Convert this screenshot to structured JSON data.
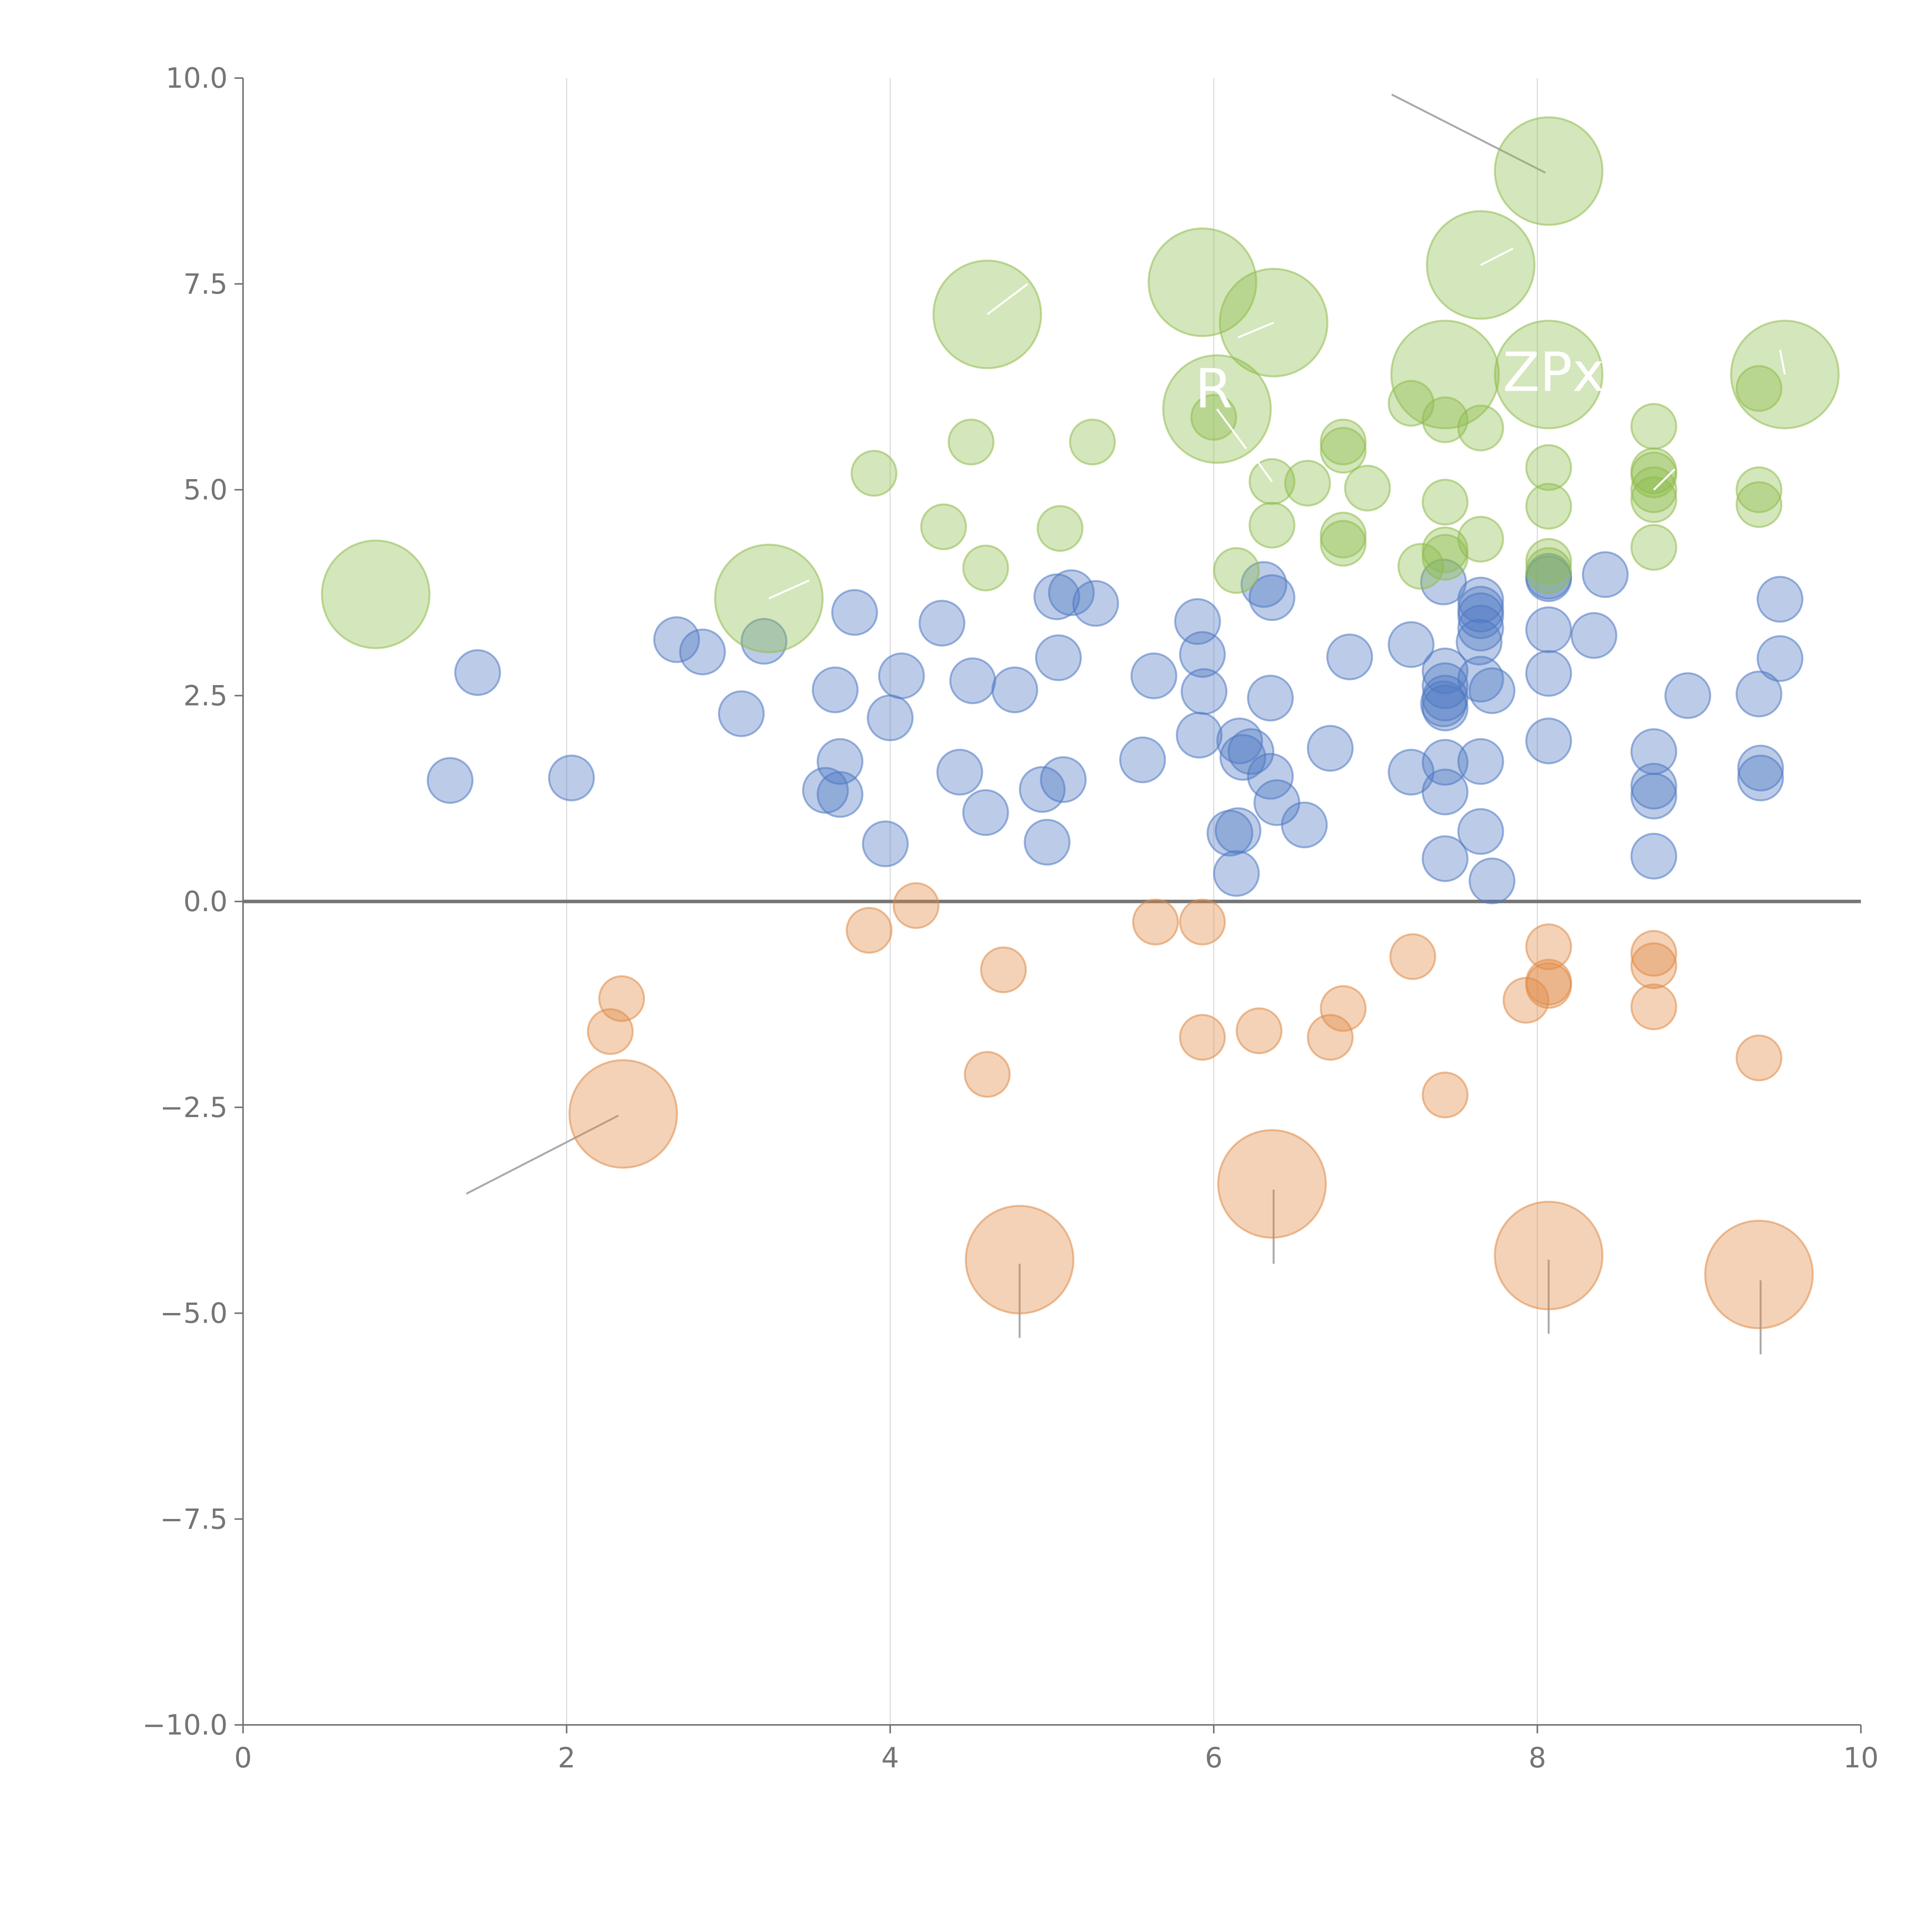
{
  "chart_data": {
    "type": "scatter",
    "title": "",
    "xlabel": "",
    "ylabel": "",
    "xlim": [
      0,
      10
    ],
    "ylim": [
      -10,
      10
    ],
    "x_ticks": [
      0,
      2,
      4,
      6,
      8,
      10
    ],
    "x_tick_labels": [
      "0",
      "2",
      "4",
      "6",
      "8",
      "10"
    ],
    "y_ticks": [
      -10,
      -7.5,
      -5,
      -2.5,
      0,
      2.5,
      5,
      7.5,
      10
    ],
    "y_tick_labels": [
      "−10.0",
      "−7.5",
      "−5.0",
      "−2.5",
      "0.0",
      "2.5",
      "5.0",
      "7.5",
      "10.0"
    ],
    "grid": "vertical",
    "colors": {
      "blue": "#4e79c3",
      "green": "#8fbc4c",
      "orange": "#e08a45",
      "axis": "#757575",
      "grid": "#dddddd",
      "zero_line": "#757575",
      "leader": "#aaaaaa"
    },
    "point_alpha": 0.38,
    "size_scale": {
      "small": 1,
      "large": 2.4
    },
    "series": [
      {
        "name": "blue",
        "color_key": "blue",
        "points": [
          [
            1.28,
            1.47,
            1
          ],
          [
            1.45,
            2.78,
            1
          ],
          [
            2.03,
            1.5,
            1
          ],
          [
            2.68,
            3.18,
            1
          ],
          [
            2.84,
            3.03,
            1
          ],
          [
            3.08,
            2.28,
            1
          ],
          [
            3.22,
            3.16,
            1
          ],
          [
            3.6,
            1.35,
            1
          ],
          [
            3.66,
            2.57,
            1
          ],
          [
            3.69,
            1.7,
            1
          ],
          [
            3.69,
            1.3,
            1
          ],
          [
            3.78,
            3.51,
            1
          ],
          [
            3.97,
            0.7,
            1
          ],
          [
            4.0,
            2.23,
            1
          ],
          [
            4.07,
            2.74,
            1
          ],
          [
            4.32,
            3.38,
            1
          ],
          [
            4.43,
            1.57,
            1
          ],
          [
            4.51,
            2.68,
            1
          ],
          [
            4.59,
            1.08,
            1
          ],
          [
            4.77,
            2.57,
            1
          ],
          [
            4.97,
            0.72,
            1
          ],
          [
            4.94,
            1.36,
            1
          ],
          [
            5.03,
            3.7,
            1
          ],
          [
            5.04,
            2.96,
            1
          ],
          [
            5.07,
            1.48,
            1
          ],
          [
            5.12,
            3.75,
            1
          ],
          [
            5.27,
            3.62,
            1
          ],
          [
            5.56,
            1.72,
            1
          ],
          [
            5.63,
            2.74,
            1
          ],
          [
            5.9,
            3.4,
            1
          ],
          [
            5.91,
            2.02,
            1
          ],
          [
            5.93,
            3.0,
            1
          ],
          [
            5.94,
            2.55,
            1
          ],
          [
            6.1,
            0.83,
            1
          ],
          [
            6.15,
            0.86,
            1
          ],
          [
            6.14,
            0.34,
            1
          ],
          [
            6.16,
            1.95,
            1
          ],
          [
            6.18,
            1.75,
            1
          ],
          [
            6.23,
            1.82,
            1
          ],
          [
            6.31,
            3.85,
            1
          ],
          [
            6.36,
            3.69,
            1
          ],
          [
            6.35,
            2.47,
            1
          ],
          [
            6.35,
            1.52,
            1
          ],
          [
            6.39,
            1.2,
            1
          ],
          [
            6.56,
            0.93,
            1
          ],
          [
            6.72,
            1.86,
            1
          ],
          [
            6.84,
            2.97,
            1
          ],
          [
            7.22,
            3.12,
            1
          ],
          [
            7.22,
            1.57,
            1
          ],
          [
            7.42,
            3.88,
            1
          ],
          [
            7.43,
            2.8,
            1
          ],
          [
            7.43,
            2.62,
            1
          ],
          [
            7.43,
            2.47,
            1
          ],
          [
            7.42,
            2.4,
            1
          ],
          [
            7.43,
            2.35,
            1
          ],
          [
            7.43,
            1.69,
            1
          ],
          [
            7.43,
            1.33,
            1
          ],
          [
            7.43,
            0.52,
            1
          ],
          [
            7.65,
            3.66,
            1
          ],
          [
            7.65,
            3.55,
            1
          ],
          [
            7.65,
            3.47,
            1
          ],
          [
            7.65,
            3.32,
            1
          ],
          [
            7.64,
            3.15,
            1
          ],
          [
            7.65,
            2.7,
            1
          ],
          [
            7.65,
            1.7,
            1
          ],
          [
            7.65,
            0.85,
            1
          ],
          [
            7.72,
            2.56,
            1
          ],
          [
            7.72,
            0.25,
            1
          ],
          [
            8.07,
            3.95,
            1
          ],
          [
            8.07,
            3.92,
            1
          ],
          [
            8.07,
            3.3,
            1
          ],
          [
            8.07,
            2.77,
            1
          ],
          [
            8.07,
            1.95,
            1
          ],
          [
            8.35,
            3.23,
            1
          ],
          [
            8.42,
            3.97,
            1
          ],
          [
            8.72,
            1.82,
            1
          ],
          [
            8.72,
            1.4,
            1
          ],
          [
            8.72,
            1.28,
            1
          ],
          [
            8.72,
            0.55,
            1
          ],
          [
            8.93,
            2.5,
            1
          ],
          [
            9.37,
            2.52,
            1
          ],
          [
            9.38,
            1.62,
            1
          ],
          [
            9.38,
            1.5,
            1
          ],
          [
            9.5,
            3.67,
            1
          ],
          [
            9.5,
            2.95,
            1
          ]
        ]
      },
      {
        "name": "green",
        "color_key": "green",
        "points": [
          [
            0.82,
            3.73,
            2.4
          ],
          [
            3.25,
            3.68,
            2.4
          ],
          [
            4.6,
            7.13,
            2.4
          ],
          [
            5.93,
            7.52,
            2.4
          ],
          [
            6.02,
            5.98,
            2.4
          ],
          [
            6.37,
            7.03,
            2.4
          ],
          [
            7.65,
            7.73,
            2.4
          ],
          [
            7.43,
            6.4,
            2.4
          ],
          [
            8.07,
            8.87,
            2.4
          ],
          [
            8.07,
            6.4,
            2.4
          ],
          [
            9.53,
            6.4,
            2.4
          ],
          [
            3.9,
            5.2,
            1
          ],
          [
            4.33,
            4.55,
            1
          ],
          [
            4.5,
            5.58,
            1
          ],
          [
            4.59,
            4.05,
            1
          ],
          [
            5.05,
            4.53,
            1
          ],
          [
            5.25,
            5.58,
            1
          ],
          [
            6.0,
            5.88,
            1
          ],
          [
            6.14,
            4.02,
            1
          ],
          [
            6.36,
            5.1,
            1
          ],
          [
            6.36,
            4.57,
            1
          ],
          [
            6.58,
            5.08,
            1
          ],
          [
            6.8,
            5.58,
            1
          ],
          [
            6.8,
            5.48,
            1
          ],
          [
            6.8,
            4.45,
            1
          ],
          [
            6.8,
            4.35,
            1
          ],
          [
            6.95,
            5.02,
            1
          ],
          [
            7.22,
            6.05,
            1
          ],
          [
            7.28,
            4.07,
            1
          ],
          [
            7.43,
            5.85,
            1
          ],
          [
            7.43,
            4.85,
            1
          ],
          [
            7.43,
            4.27,
            1
          ],
          [
            7.43,
            4.18,
            1
          ],
          [
            7.65,
            5.75,
            1
          ],
          [
            7.65,
            4.4,
            1
          ],
          [
            8.07,
            5.27,
            1
          ],
          [
            8.07,
            4.8,
            1
          ],
          [
            8.07,
            4.13,
            1
          ],
          [
            8.07,
            4.02,
            1
          ],
          [
            8.72,
            5.77,
            1
          ],
          [
            8.72,
            5.23,
            1
          ],
          [
            8.72,
            5.18,
            1
          ],
          [
            8.72,
            5.0,
            1
          ],
          [
            8.72,
            4.88,
            1
          ],
          [
            8.72,
            4.3,
            1
          ],
          [
            9.37,
            6.23,
            1
          ],
          [
            9.37,
            5.0,
            1
          ],
          [
            9.37,
            4.82,
            1
          ]
        ]
      },
      {
        "name": "orange",
        "color_key": "orange",
        "points": [
          [
            2.35,
            -2.58,
            2.4
          ],
          [
            4.8,
            -4.35,
            2.4
          ],
          [
            6.36,
            -3.43,
            2.4
          ],
          [
            8.07,
            -4.3,
            2.4
          ],
          [
            9.37,
            -4.53,
            2.4
          ],
          [
            2.27,
            -1.58,
            1
          ],
          [
            2.34,
            -1.18,
            1
          ],
          [
            3.87,
            -0.35,
            1
          ],
          [
            4.16,
            -0.05,
            1
          ],
          [
            4.6,
            -2.1,
            1
          ],
          [
            4.7,
            -0.83,
            1
          ],
          [
            5.64,
            -0.25,
            1
          ],
          [
            5.93,
            -0.25,
            1
          ],
          [
            5.93,
            -1.65,
            1
          ],
          [
            6.28,
            -1.57,
            1
          ],
          [
            6.72,
            -1.65,
            1
          ],
          [
            6.8,
            -1.3,
            1
          ],
          [
            7.23,
            -0.67,
            1
          ],
          [
            7.43,
            -2.35,
            1
          ],
          [
            7.93,
            -1.2,
            1
          ],
          [
            8.07,
            -0.55,
            1
          ],
          [
            8.07,
            -0.98,
            1
          ],
          [
            8.07,
            -1.02,
            1
          ],
          [
            8.72,
            -0.63,
            1
          ],
          [
            8.72,
            -0.78,
            1
          ],
          [
            8.72,
            -1.28,
            1
          ],
          [
            9.37,
            -1.9,
            1
          ]
        ]
      }
    ],
    "annotations": [
      {
        "text": "R",
        "x": 6.0,
        "y": 6.0
      },
      {
        "text": "ZPx",
        "x": 8.1,
        "y": 6.2
      }
    ],
    "leader_lines": [
      {
        "from": [
          8.05,
          8.85
        ],
        "to": [
          7.1,
          9.8
        ],
        "color_key": "leader"
      },
      {
        "from": [
          2.32,
          -2.6
        ],
        "to": [
          1.38,
          -3.55
        ],
        "color_key": "leader"
      },
      {
        "from": [
          4.8,
          -4.4
        ],
        "to": [
          4.8,
          -5.3
        ],
        "color_key": "leader"
      },
      {
        "from": [
          6.37,
          -3.5
        ],
        "to": [
          6.37,
          -4.4
        ],
        "color_key": "leader"
      },
      {
        "from": [
          8.07,
          -4.35
        ],
        "to": [
          8.07,
          -5.25
        ],
        "color_key": "leader"
      },
      {
        "from": [
          9.38,
          -4.6
        ],
        "to": [
          9.38,
          -5.5
        ],
        "color_key": "leader"
      },
      {
        "from": [
          4.6,
          7.13
        ],
        "to": [
          4.85,
          7.5
        ],
        "color_key": "white"
      },
      {
        "from": [
          3.25,
          3.68
        ],
        "to": [
          3.5,
          3.9
        ],
        "color_key": "white"
      },
      {
        "from": [
          6.37,
          7.03
        ],
        "to": [
          6.15,
          6.85
        ],
        "color_key": "white"
      },
      {
        "from": [
          7.65,
          7.73
        ],
        "to": [
          7.85,
          7.93
        ],
        "color_key": "white"
      },
      {
        "from": [
          9.53,
          6.4
        ],
        "to": [
          9.5,
          6.7
        ],
        "color_key": "white"
      },
      {
        "from": [
          6.02,
          5.98
        ],
        "to": [
          6.2,
          5.5
        ],
        "color_key": "white"
      },
      {
        "from": [
          6.36,
          5.1
        ],
        "to": [
          6.25,
          5.4
        ],
        "color_key": "white"
      },
      {
        "from": [
          8.72,
          5.0
        ],
        "to": [
          8.85,
          5.25
        ],
        "color_key": "white"
      }
    ]
  }
}
